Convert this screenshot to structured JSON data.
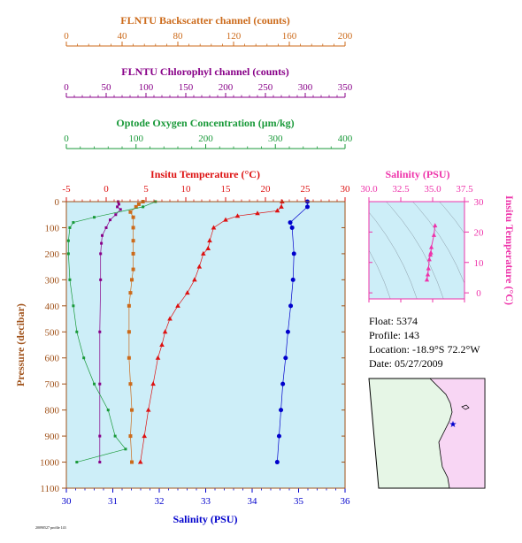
{
  "colors": {
    "backscatter": "#cc6a1a",
    "chlorophyl": "#880088",
    "oxygen": "#1a9a3a",
    "temperature": "#dd1111",
    "salinity": "#0000cc",
    "pressure_axis": "#a0521a",
    "ts": "#ee33aa",
    "plot_bg": "#cdeef8",
    "land": "#f8d6f4",
    "sea": "#e6f6e6"
  },
  "axes": {
    "backscatter": {
      "title": "FLNTU Backscatter channel (counts)",
      "range": [
        0,
        200
      ],
      "ticks": [
        "0",
        "40",
        "80",
        "120",
        "160",
        "200"
      ]
    },
    "chlorophyl": {
      "title": "FLNTU Chlorophyl channel (counts)",
      "range": [
        0,
        350
      ],
      "ticks": [
        "0",
        "50",
        "100",
        "150",
        "200",
        "250",
        "300",
        "350"
      ]
    },
    "oxygen": {
      "title": "Optode Oxygen Concentration (µm/kg)",
      "range": [
        0,
        400
      ],
      "ticks": [
        "0",
        "100",
        "200",
        "300",
        "400"
      ]
    },
    "temperature": {
      "title": "Insitu Temperature (°C)",
      "range": [
        -5,
        30
      ],
      "ticks": [
        "-5",
        "0",
        "5",
        "10",
        "15",
        "20",
        "25",
        "30"
      ]
    },
    "pressure": {
      "title": "Pressure (decibar)",
      "range": [
        0,
        1100
      ],
      "ticks": [
        "0",
        "100",
        "200",
        "300",
        "400",
        "500",
        "600",
        "700",
        "800",
        "900",
        "1000",
        "1100"
      ]
    },
    "salinity": {
      "title": "Salinity (PSU)",
      "range": [
        30,
        36
      ],
      "ticks": [
        "30",
        "31",
        "32",
        "33",
        "34",
        "35",
        "36"
      ]
    }
  },
  "ts_diagram": {
    "salinity_title": "Salinity (PSU)",
    "temperature_title": "Insitu Temperature (°C)",
    "salinity_range": [
      30,
      37.5
    ],
    "temperature_range": [
      -2,
      30
    ],
    "salinity_ticks": [
      "30.0",
      "32.5",
      "35.0",
      "37.5"
    ],
    "temperature_ticks": [
      "0",
      "10",
      "20",
      "30"
    ]
  },
  "info": {
    "float": "Float:  5374",
    "profile": "Profile:  143",
    "location": "Location:  -18.9°S  72.2°W",
    "date": "Date:  05/27/2009"
  },
  "footer_note": "20090527 profile 143",
  "chart_data": {
    "type": "line",
    "y_axis": "Pressure (decibar)",
    "y_reversed": true,
    "series": [
      {
        "name": "Backscatter",
        "axis": "backscatter",
        "points": [
          [
            55,
            0
          ],
          [
            52,
            10
          ],
          [
            50,
            20
          ],
          [
            46,
            40
          ],
          [
            48,
            60
          ],
          [
            48,
            100
          ],
          [
            48,
            150
          ],
          [
            48,
            200
          ],
          [
            48,
            260
          ],
          [
            47,
            300
          ],
          [
            46,
            350
          ],
          [
            45,
            400
          ],
          [
            45,
            500
          ],
          [
            45,
            600
          ],
          [
            46,
            700
          ],
          [
            47,
            800
          ],
          [
            46,
            900
          ],
          [
            47,
            1000
          ]
        ]
      },
      {
        "name": "Chlorophyl",
        "axis": "chlorophyl",
        "points": [
          [
            65,
            0
          ],
          [
            66,
            10
          ],
          [
            64,
            20
          ],
          [
            68,
            30
          ],
          [
            62,
            50
          ],
          [
            55,
            70
          ],
          [
            50,
            100
          ],
          [
            45,
            130
          ],
          [
            44,
            160
          ],
          [
            43,
            200
          ],
          [
            43,
            300
          ],
          [
            42,
            500
          ],
          [
            42,
            700
          ],
          [
            42,
            900
          ],
          [
            42,
            1000
          ]
        ]
      },
      {
        "name": "Oxygen",
        "axis": "oxygen",
        "points": [
          [
            128,
            0
          ],
          [
            110,
            20
          ],
          [
            40,
            60
          ],
          [
            10,
            80
          ],
          [
            5,
            100
          ],
          [
            3,
            150
          ],
          [
            3,
            200
          ],
          [
            5,
            300
          ],
          [
            10,
            400
          ],
          [
            15,
            500
          ],
          [
            25,
            600
          ],
          [
            40,
            700
          ],
          [
            60,
            800
          ],
          [
            70,
            900
          ],
          [
            85,
            950
          ],
          [
            15,
            1000
          ]
        ]
      },
      {
        "name": "Temperature",
        "axis": "temperature",
        "points": [
          [
            22.1,
            0
          ],
          [
            22.0,
            20
          ],
          [
            21.5,
            35
          ],
          [
            19.0,
            45
          ],
          [
            16.5,
            55
          ],
          [
            15.0,
            70
          ],
          [
            13.5,
            100
          ],
          [
            13.0,
            150
          ],
          [
            12.8,
            180
          ],
          [
            12.2,
            200
          ],
          [
            11.7,
            250
          ],
          [
            11.1,
            300
          ],
          [
            10.2,
            350
          ],
          [
            9.0,
            400
          ],
          [
            8.0,
            450
          ],
          [
            7.4,
            500
          ],
          [
            7.0,
            550
          ],
          [
            6.5,
            600
          ],
          [
            5.9,
            700
          ],
          [
            5.3,
            800
          ],
          [
            4.8,
            900
          ],
          [
            4.3,
            1000
          ]
        ]
      },
      {
        "name": "Salinity",
        "axis": "salinity",
        "points": [
          [
            35.19,
            0
          ],
          [
            35.19,
            20
          ],
          [
            34.82,
            80
          ],
          [
            34.86,
            100
          ],
          [
            34.9,
            200
          ],
          [
            34.88,
            300
          ],
          [
            34.83,
            400
          ],
          [
            34.77,
            500
          ],
          [
            34.72,
            600
          ],
          [
            34.66,
            700
          ],
          [
            34.62,
            800
          ],
          [
            34.58,
            900
          ],
          [
            34.54,
            1000
          ]
        ]
      }
    ],
    "ts_points": [
      [
        35.19,
        22.1
      ],
      [
        35.1,
        19.0
      ],
      [
        34.9,
        15.0
      ],
      [
        34.86,
        13.2
      ],
      [
        34.82,
        12.5
      ],
      [
        34.74,
        11.0
      ],
      [
        34.67,
        8.0
      ],
      [
        34.62,
        6.0
      ],
      [
        34.55,
        4.3
      ]
    ]
  }
}
